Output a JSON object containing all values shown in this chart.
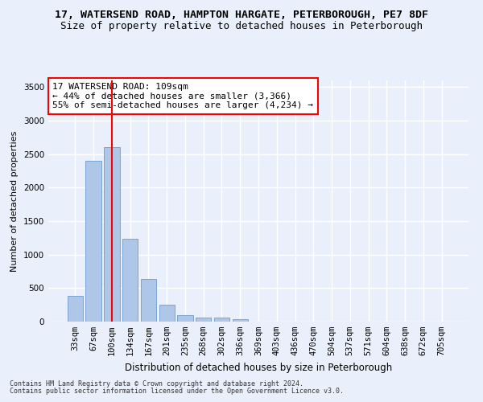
{
  "title_line1": "17, WATERSEND ROAD, HAMPTON HARGATE, PETERBOROUGH, PE7 8DF",
  "title_line2": "Size of property relative to detached houses in Peterborough",
  "xlabel": "Distribution of detached houses by size in Peterborough",
  "ylabel": "Number of detached properties",
  "footer_line1": "Contains HM Land Registry data © Crown copyright and database right 2024.",
  "footer_line2": "Contains public sector information licensed under the Open Government Licence v3.0.",
  "categories": [
    "33sqm",
    "67sqm",
    "100sqm",
    "134sqm",
    "167sqm",
    "201sqm",
    "235sqm",
    "268sqm",
    "302sqm",
    "336sqm",
    "369sqm",
    "403sqm",
    "436sqm",
    "470sqm",
    "504sqm",
    "537sqm",
    "571sqm",
    "604sqm",
    "638sqm",
    "672sqm",
    "705sqm"
  ],
  "values": [
    390,
    2400,
    2600,
    1240,
    640,
    255,
    95,
    60,
    55,
    40,
    0,
    0,
    0,
    0,
    0,
    0,
    0,
    0,
    0,
    0,
    0
  ],
  "bar_color": "#aec6e8",
  "bar_edge_color": "#5a8fc4",
  "vline_x": 2,
  "vline_color": "red",
  "annotation_text": "17 WATERSEND ROAD: 109sqm\n← 44% of detached houses are smaller (3,366)\n55% of semi-detached houses are larger (4,234) →",
  "annotation_box_color": "white",
  "annotation_box_edge": "red",
  "ylim": [
    0,
    3600
  ],
  "yticks": [
    0,
    500,
    1000,
    1500,
    2000,
    2500,
    3000,
    3500
  ],
  "bg_color": "#eaf0fb",
  "grid_color": "white",
  "title_fontsize": 9.5,
  "subtitle_fontsize": 9,
  "annotation_fontsize": 8,
  "ylabel_fontsize": 8,
  "xlabel_fontsize": 8.5,
  "tick_fontsize": 7.5,
  "footer_fontsize": 6
}
